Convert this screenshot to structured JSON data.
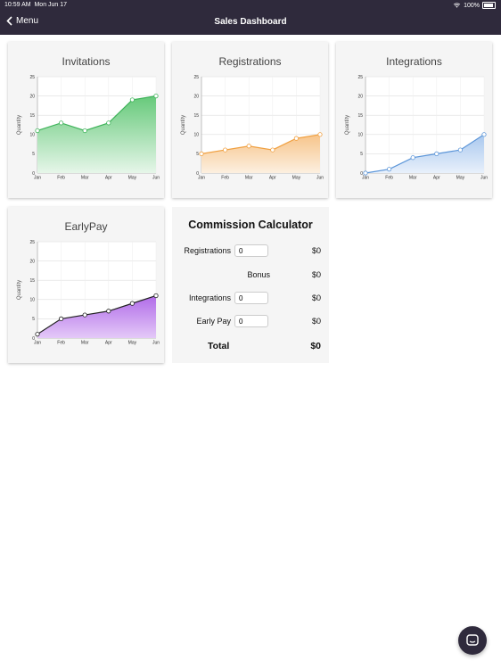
{
  "status_bar": {
    "time": "10:59 AM",
    "date": "Mon Jun 17",
    "battery": "100%",
    "icons": [
      "wifi-icon",
      "battery-icon"
    ]
  },
  "nav": {
    "back_label": "Menu",
    "back_icon": "chevron-left-icon",
    "title": "Sales Dashboard"
  },
  "charts": [
    {
      "title": "Invitations",
      "ylabel": "Quantity",
      "color": "#3fb35a",
      "fill_top": "#66c97a",
      "fill_bottom": "#e6f6e9",
      "values": [
        11,
        13,
        11,
        13,
        19,
        20
      ]
    },
    {
      "title": "Registrations",
      "ylabel": "Quantity",
      "color": "#f0a040",
      "fill_top": "#f7c48a",
      "fill_bottom": "#fcefe0",
      "values": [
        5,
        6,
        7,
        6,
        9,
        10
      ]
    },
    {
      "title": "Integrations",
      "ylabel": "Quantity",
      "color": "#5b95d8",
      "fill_top": "#a9c8ee",
      "fill_bottom": "#e8f0fb",
      "values": [
        0,
        1,
        4,
        5,
        6,
        10
      ]
    },
    {
      "title": "EarlyPay",
      "ylabel": "Quantity",
      "color": "#222222",
      "fill_top": "#b06be8",
      "fill_bottom": "#e4c9f8",
      "values": [
        1,
        5,
        6,
        7,
        9,
        11
      ]
    }
  ],
  "chart_data": [
    {
      "type": "area",
      "title": "Invitations",
      "xlabel": "",
      "ylabel": "Quantity",
      "categories": [
        "Jan",
        "Feb",
        "Mar",
        "Apr",
        "May",
        "Jun"
      ],
      "values": [
        11,
        13,
        11,
        13,
        19,
        20
      ],
      "ylim": [
        0,
        25
      ],
      "yticks": [
        0,
        5,
        10,
        15,
        20,
        25
      ],
      "grid": true
    },
    {
      "type": "area",
      "title": "Registrations",
      "xlabel": "",
      "ylabel": "Quantity",
      "categories": [
        "Jan",
        "Feb",
        "Mar",
        "Apr",
        "May",
        "Jun"
      ],
      "values": [
        5,
        6,
        7,
        6,
        9,
        10
      ],
      "ylim": [
        0,
        25
      ],
      "yticks": [
        0,
        5,
        10,
        15,
        20,
        25
      ],
      "grid": true
    },
    {
      "type": "area",
      "title": "Integrations",
      "xlabel": "",
      "ylabel": "Quantity",
      "categories": [
        "Jan",
        "Feb",
        "Mar",
        "Apr",
        "May",
        "Jun"
      ],
      "values": [
        0,
        1,
        4,
        5,
        6,
        10
      ],
      "ylim": [
        0,
        25
      ],
      "yticks": [
        0,
        5,
        10,
        15,
        20,
        25
      ],
      "grid": true
    },
    {
      "type": "area",
      "title": "EarlyPay",
      "xlabel": "",
      "ylabel": "Quantity",
      "categories": [
        "Jan",
        "Feb",
        "Mar",
        "Apr",
        "May",
        "Jun"
      ],
      "values": [
        1,
        5,
        6,
        7,
        9,
        11
      ],
      "ylim": [
        0,
        25
      ],
      "yticks": [
        0,
        5,
        10,
        15,
        20,
        25
      ],
      "grid": true
    }
  ],
  "calculator": {
    "title": "Commission Calculator",
    "rows": [
      {
        "label": "Registrations",
        "input": "0",
        "value": "$0"
      },
      {
        "label": "Bonus",
        "value": "$0"
      },
      {
        "label": "Integrations",
        "input": "0",
        "value": "$0"
      },
      {
        "label": "Early Pay",
        "input": "0",
        "value": "$0"
      }
    ],
    "total_label": "Total",
    "total_value": "$0"
  },
  "chat_button": {
    "icon": "chat-icon"
  }
}
